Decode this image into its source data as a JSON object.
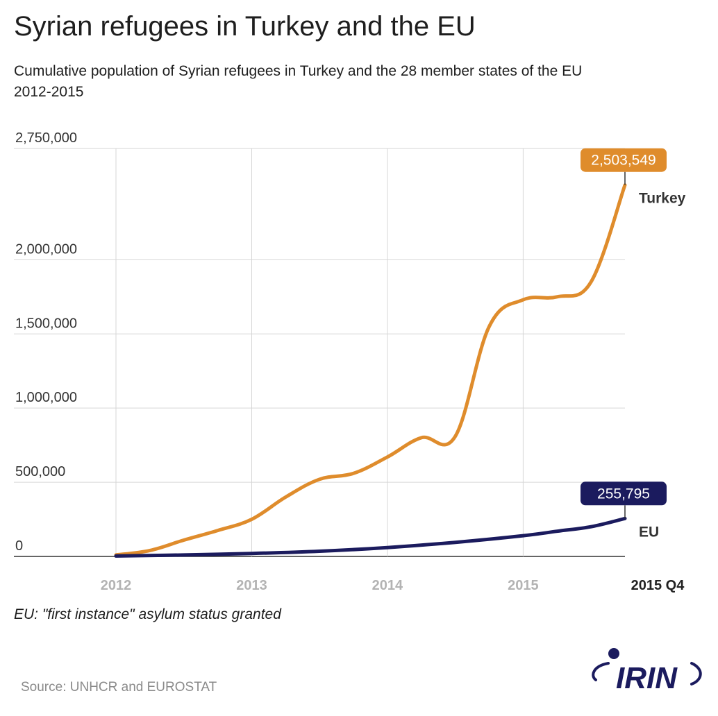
{
  "header": {
    "title": "Syrian refugees in Turkey and the EU",
    "subtitle_line1": "Cumulative population of Syrian refugees in Turkey and the 28 member states of the EU",
    "subtitle_line2": "2012-2015"
  },
  "footer": {
    "note": "EU: \"first instance\" asylum status granted",
    "source": "Source: UNHCR and EUROSTAT"
  },
  "logo": {
    "text": "IRIN",
    "icon": "irin-logo-icon",
    "color": "#1b1b5e"
  },
  "chart_data": {
    "type": "line",
    "title": "Syrian refugees in Turkey and the EU",
    "subtitle": "Cumulative population of Syrian refugees in Turkey and the 28 member states of the EU 2012-2015",
    "xlim": [
      2012,
      2015.75
    ],
    "ylim": [
      0,
      2750000
    ],
    "y_ticks": [
      {
        "value": 0,
        "label": "0"
      },
      {
        "value": 500000,
        "label": "500,000"
      },
      {
        "value": 1000000,
        "label": "1,000,000"
      },
      {
        "value": 1500000,
        "label": "1,500,000"
      },
      {
        "value": 2000000,
        "label": "2,000,000"
      },
      {
        "value": 2750000,
        "label": "2,750,000"
      }
    ],
    "x_ticks": [
      {
        "value": 2012,
        "label": "2012",
        "bold": false
      },
      {
        "value": 2013,
        "label": "2013",
        "bold": false
      },
      {
        "value": 2014,
        "label": "2014",
        "bold": false
      },
      {
        "value": 2015,
        "label": "2015",
        "bold": false
      },
      {
        "value": 2015.75,
        "label": "2015 Q4",
        "bold": true
      }
    ],
    "grid": true,
    "series": [
      {
        "name": "Turkey",
        "color": "#df8c2c",
        "end_label": "2,503,549",
        "points": [
          [
            2012.0,
            10000
          ],
          [
            2012.25,
            40000
          ],
          [
            2012.5,
            110000
          ],
          [
            2012.75,
            175000
          ],
          [
            2013.0,
            250000
          ],
          [
            2013.25,
            400000
          ],
          [
            2013.5,
            520000
          ],
          [
            2013.75,
            560000
          ],
          [
            2014.0,
            670000
          ],
          [
            2014.25,
            800000
          ],
          [
            2014.5,
            810000
          ],
          [
            2014.75,
            1550000
          ],
          [
            2015.0,
            1730000
          ],
          [
            2015.25,
            1750000
          ],
          [
            2015.5,
            1850000
          ],
          [
            2015.75,
            2503549
          ]
        ]
      },
      {
        "name": "EU",
        "color": "#1b1b5e",
        "end_label": "255,795",
        "points": [
          [
            2012.0,
            3000
          ],
          [
            2012.5,
            10000
          ],
          [
            2013.0,
            20000
          ],
          [
            2013.5,
            35000
          ],
          [
            2014.0,
            60000
          ],
          [
            2014.5,
            95000
          ],
          [
            2015.0,
            140000
          ],
          [
            2015.25,
            170000
          ],
          [
            2015.5,
            200000
          ],
          [
            2015.75,
            255795
          ]
        ]
      }
    ]
  }
}
